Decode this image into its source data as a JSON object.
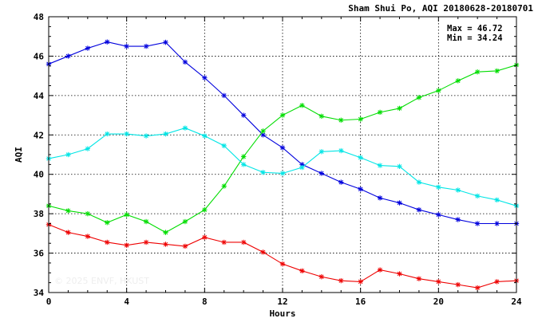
{
  "chart_data": {
    "type": "line",
    "title": "Sham Shui Po, AQI 20180628-20180701",
    "xlabel": "Hours",
    "ylabel": "AQI",
    "xlim": [
      0,
      24
    ],
    "ylim": [
      34,
      48
    ],
    "x_ticks": [
      "0",
      "4",
      "8",
      "12",
      "16",
      "20",
      "24"
    ],
    "y_ticks": [
      "34",
      "36",
      "38",
      "40",
      "42",
      "44",
      "46",
      "48"
    ],
    "grid": true,
    "marker": "asterisk",
    "annotations": {
      "max": "Max = 46.72",
      "min": "Min = 34.24"
    },
    "watermark": "© 2025 ENVF, HKUST",
    "x": [
      0,
      1,
      2,
      3,
      4,
      5,
      6,
      7,
      8,
      9,
      10,
      11,
      12,
      13,
      14,
      15,
      16,
      17,
      18,
      19,
      20,
      21,
      22,
      23,
      24
    ],
    "series": [
      {
        "color": "#0000dd",
        "values": [
          45.6,
          46.0,
          46.4,
          46.72,
          46.5,
          46.5,
          46.7,
          45.7,
          44.9,
          44.0,
          43.0,
          42.0,
          41.35,
          40.5,
          40.05,
          39.6,
          39.25,
          38.8,
          38.55,
          38.2,
          37.95,
          37.7,
          37.5,
          37.5,
          37.5
        ]
      },
      {
        "color": "#00dd00",
        "values": [
          38.4,
          38.15,
          38.0,
          37.55,
          37.95,
          37.6,
          37.05,
          37.6,
          38.2,
          39.4,
          40.9,
          42.2,
          43.0,
          43.5,
          42.95,
          42.75,
          42.8,
          43.15,
          43.35,
          43.9,
          44.25,
          44.75,
          45.2,
          45.25,
          45.55
        ]
      },
      {
        "color": "#00e5e5",
        "values": [
          40.8,
          41.0,
          41.3,
          42.05,
          42.05,
          41.95,
          42.05,
          42.35,
          41.95,
          41.45,
          40.5,
          40.1,
          40.05,
          40.35,
          41.15,
          41.2,
          40.85,
          40.45,
          40.4,
          39.6,
          39.35,
          39.2,
          38.9,
          38.7,
          38.4
        ]
      },
      {
        "color": "#ee0000",
        "values": [
          37.45,
          37.05,
          36.85,
          36.55,
          36.4,
          36.55,
          36.45,
          36.35,
          36.8,
          36.55,
          36.55,
          36.05,
          35.45,
          35.1,
          34.8,
          34.6,
          34.55,
          35.15,
          34.95,
          34.7,
          34.55,
          34.4,
          34.24,
          34.55,
          34.6
        ]
      }
    ]
  }
}
